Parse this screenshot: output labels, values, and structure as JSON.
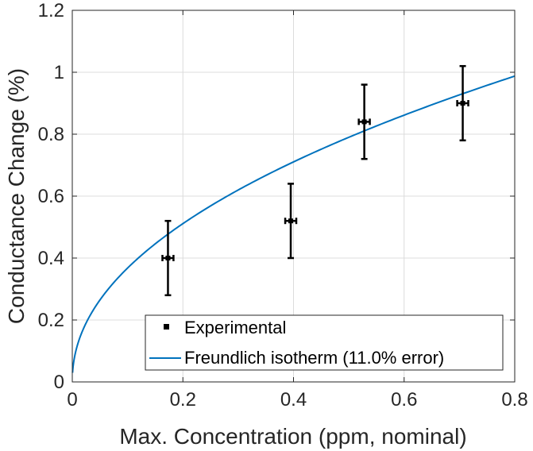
{
  "chart_data": {
    "type": "scatter",
    "title": "",
    "xlabel": "Max. Concentration (ppm, nominal)",
    "ylabel": "Conductance Change (%)",
    "xlim": [
      0,
      0.8
    ],
    "ylim": [
      0,
      1.2
    ],
    "xticks": [
      0,
      0.2,
      0.4,
      0.6,
      0.8
    ],
    "xtick_labels": [
      "0",
      "0.2",
      "0.4",
      "0.6",
      "0.8"
    ],
    "yticks": [
      0,
      0.2,
      0.4,
      0.6,
      0.8,
      1,
      1.2
    ],
    "ytick_labels": [
      "0",
      "0.2",
      "0.4",
      "0.6",
      "0.8",
      "1",
      "1.2"
    ],
    "grid": true,
    "legend_position": "bottom-right",
    "series": [
      {
        "name": "Experimental",
        "kind": "points-with-errorbars",
        "color": "#000000",
        "points": [
          {
            "x": 0.173,
            "y": 0.4,
            "y_low": 0.28,
            "y_high": 0.52,
            "x_err": 0.01
          },
          {
            "x": 0.395,
            "y": 0.52,
            "y_low": 0.4,
            "y_high": 0.64,
            "x_err": 0.01
          },
          {
            "x": 0.528,
            "y": 0.84,
            "y_low": 0.72,
            "y_high": 0.96,
            "x_err": 0.01
          },
          {
            "x": 0.706,
            "y": 0.9,
            "y_low": 0.78,
            "y_high": 1.02,
            "x_err": 0.01
          }
        ]
      },
      {
        "name": "Freundlich isotherm (11.0% error)",
        "kind": "line",
        "color": "#0072BD",
        "model": {
          "a": 1.098,
          "b": 0.475
        },
        "x": [
          0.002,
          0.01,
          0.02,
          0.05,
          0.1,
          0.15,
          0.2,
          0.25,
          0.3,
          0.35,
          0.4,
          0.45,
          0.5,
          0.55,
          0.6,
          0.65,
          0.7,
          0.75,
          0.8
        ],
        "y": [
          0.058,
          0.123,
          0.172,
          0.265,
          0.367,
          0.444,
          0.509,
          0.566,
          0.618,
          0.665,
          0.708,
          0.749,
          0.788,
          0.824,
          0.859,
          0.893,
          0.925,
          0.956,
          0.987
        ]
      }
    ]
  }
}
